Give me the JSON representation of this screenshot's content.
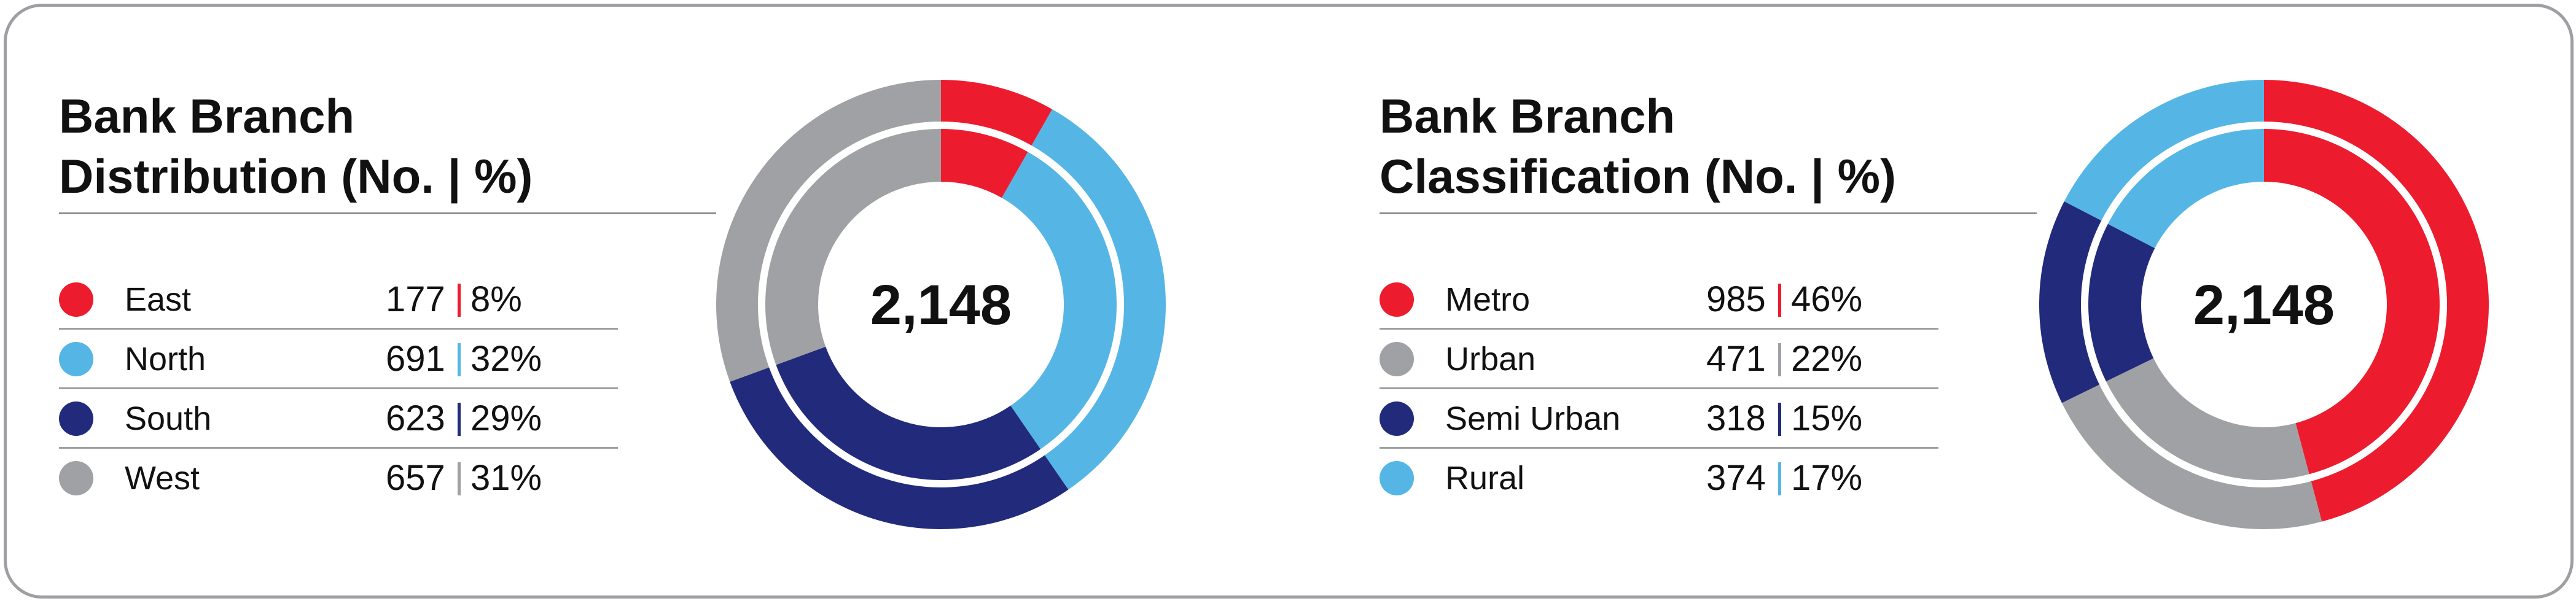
{
  "panels": [
    {
      "title_line1": "Bank Branch",
      "title_line2": "Distribution (No. | %)",
      "total": "2,148",
      "legend": [
        {
          "label": "East",
          "count": "177",
          "percent": "8%",
          "color": "#ec1c2e"
        },
        {
          "label": "North",
          "count": "691",
          "percent": "32%",
          "color": "#55b6e6"
        },
        {
          "label": "South",
          "count": "623",
          "percent": "29%",
          "color": "#222a7b"
        },
        {
          "label": "West",
          "count": "657",
          "percent": "31%",
          "color": "#a0a1a4"
        }
      ]
    },
    {
      "title_line1": "Bank Branch",
      "title_line2": "Classification (No. | %)",
      "total": "2,148",
      "legend": [
        {
          "label": "Metro",
          "count": "985",
          "percent": "46%",
          "color": "#ec1c2e"
        },
        {
          "label": "Urban",
          "count": "471",
          "percent": "22%",
          "color": "#a0a1a4"
        },
        {
          "label": "Semi Urban",
          "count": "318",
          "percent": "15%",
          "color": "#222a7b"
        },
        {
          "label": "Rural",
          "count": "374",
          "percent": "17%",
          "color": "#55b6e6"
        }
      ]
    }
  ],
  "chart_data": [
    {
      "type": "pie",
      "title": "Bank Branch Distribution (No. | %)",
      "center_label": "2,148",
      "categories": [
        "East",
        "North",
        "South",
        "West"
      ],
      "values": [
        177,
        691,
        623,
        657
      ],
      "percentages": [
        8,
        32,
        29,
        31
      ],
      "colors": [
        "#ec1c2e",
        "#55b6e6",
        "#222a7b",
        "#a0a1a4"
      ]
    },
    {
      "type": "pie",
      "title": "Bank Branch Classification (No. | %)",
      "center_label": "2,148",
      "categories": [
        "Metro",
        "Urban",
        "Semi Urban",
        "Rural"
      ],
      "values": [
        985,
        471,
        318,
        374
      ],
      "percentages": [
        46,
        22,
        15,
        17
      ],
      "colors": [
        "#ec1c2e",
        "#a0a1a4",
        "#222a7b",
        "#55b6e6"
      ]
    }
  ]
}
